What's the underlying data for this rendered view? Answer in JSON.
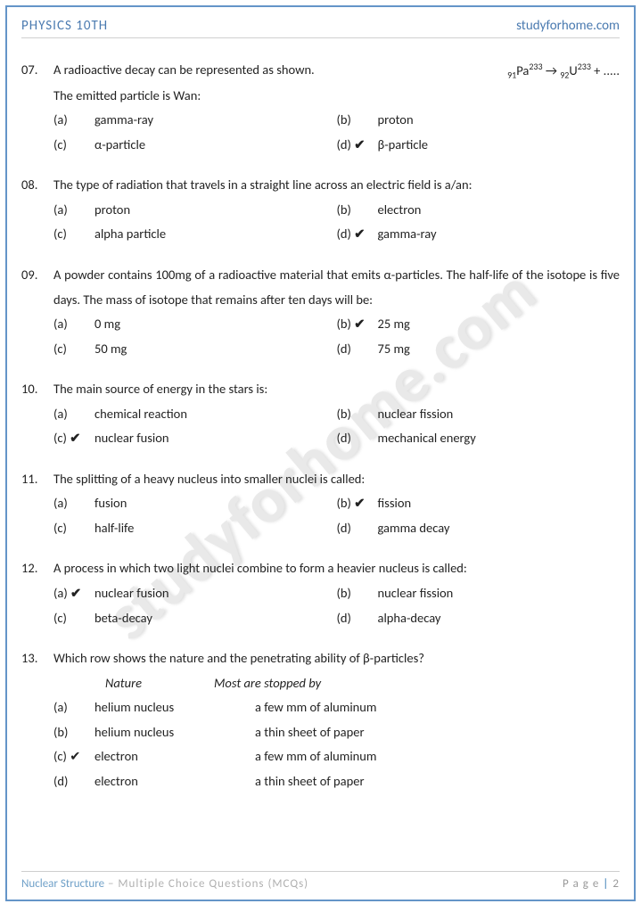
{
  "header": {
    "left": "PHYSICS 10TH",
    "right": "studyforhome.com"
  },
  "watermark": "studyforhome.com",
  "footer": {
    "title1": "Nuclear Structure",
    "title2": " – Multiple Choice Questions (MCQs)",
    "page_label": "P a g e ",
    "page_num": "2"
  },
  "questions": [
    {
      "num": "07.",
      "stem_pre": "A   radioactive   decay   can   be   represented   as   shown.",
      "equation_html": "<sub>91</sub>Pa<sup>233</sup>  →  <sub>92</sub>U<sup>233</sup> + .....",
      "stem_post": "The emitted particle is Wan:",
      "opts": [
        {
          "l": "(a)",
          "v": "gamma-ray",
          "c": false
        },
        {
          "l": "(b)",
          "v": "proton",
          "c": false
        },
        {
          "l": "(c)",
          "v": "α-particle",
          "c": false
        },
        {
          "l": "(d)",
          "v": "β-particle",
          "c": true
        }
      ]
    },
    {
      "num": "08.",
      "stem": "The type of radiation that travels in a straight line across an electric field is a/an:",
      "opts": [
        {
          "l": "(a)",
          "v": "proton",
          "c": false
        },
        {
          "l": "(b)",
          "v": "electron",
          "c": false
        },
        {
          "l": "(c)",
          "v": "alpha particle",
          "c": false
        },
        {
          "l": "(d)",
          "v": "gamma-ray",
          "c": true
        }
      ]
    },
    {
      "num": "09.",
      "stem": "A powder contains 100mg of a radioactive material that emits α-particles. The half-life of the isotope is five days. The mass of isotope that remains after ten days will be:",
      "opts": [
        {
          "l": "(a)",
          "v": "0 mg",
          "c": false
        },
        {
          "l": "(b)",
          "v": "25 mg",
          "c": true
        },
        {
          "l": "(c)",
          "v": "50 mg",
          "c": false
        },
        {
          "l": "(d)",
          "v": "75 mg",
          "c": false
        }
      ]
    },
    {
      "num": "10.",
      "stem": "The main source of energy in the stars is:",
      "opts": [
        {
          "l": "(a)",
          "v": "chemical reaction",
          "c": false
        },
        {
          "l": "(b)",
          "v": "nuclear fission",
          "c": false
        },
        {
          "l": "(c)",
          "v": "nuclear fusion",
          "c": true
        },
        {
          "l": "(d)",
          "v": "mechanical energy",
          "c": false
        }
      ]
    },
    {
      "num": "11.",
      "stem": "The splitting of a heavy nucleus into smaller nuclei is called:",
      "opts": [
        {
          "l": "(a)",
          "v": "fusion",
          "c": false
        },
        {
          "l": "(b)",
          "v": "fission",
          "c": true
        },
        {
          "l": "(c)",
          "v": "half-life",
          "c": false
        },
        {
          "l": "(d)",
          "v": " gamma decay",
          "c": false
        }
      ]
    },
    {
      "num": "12.",
      "stem": "A process in which two light nuclei combine to form a heavier nucleus is called:",
      "opts": [
        {
          "l": "(a)",
          "v": "nuclear fusion",
          "c": true
        },
        {
          "l": "(b)",
          "v": "nuclear fission",
          "c": false
        },
        {
          "l": "(c)",
          "v": "beta-decay",
          "c": false
        },
        {
          "l": "(d)",
          "v": "alpha-decay",
          "c": false
        }
      ]
    },
    {
      "num": "13.",
      "stem": "Which row shows the nature and the penetrating ability of β-particles?",
      "table": {
        "head": [
          "Nature",
          "Most are stopped by"
        ],
        "rows": [
          {
            "l": "(a)",
            "c1": "helium nucleus",
            "c2": "a few mm of aluminum",
            "c": false
          },
          {
            "l": "(b)",
            "c1": "helium nucleus",
            "c2": "a thin sheet of paper",
            "c": false
          },
          {
            "l": "(c)",
            "c1": "electron",
            "c2": "a few mm of aluminum",
            "c": true
          },
          {
            "l": "(d)",
            "c1": "electron",
            "c2": "a thin sheet of paper",
            "c": false
          }
        ]
      }
    }
  ]
}
